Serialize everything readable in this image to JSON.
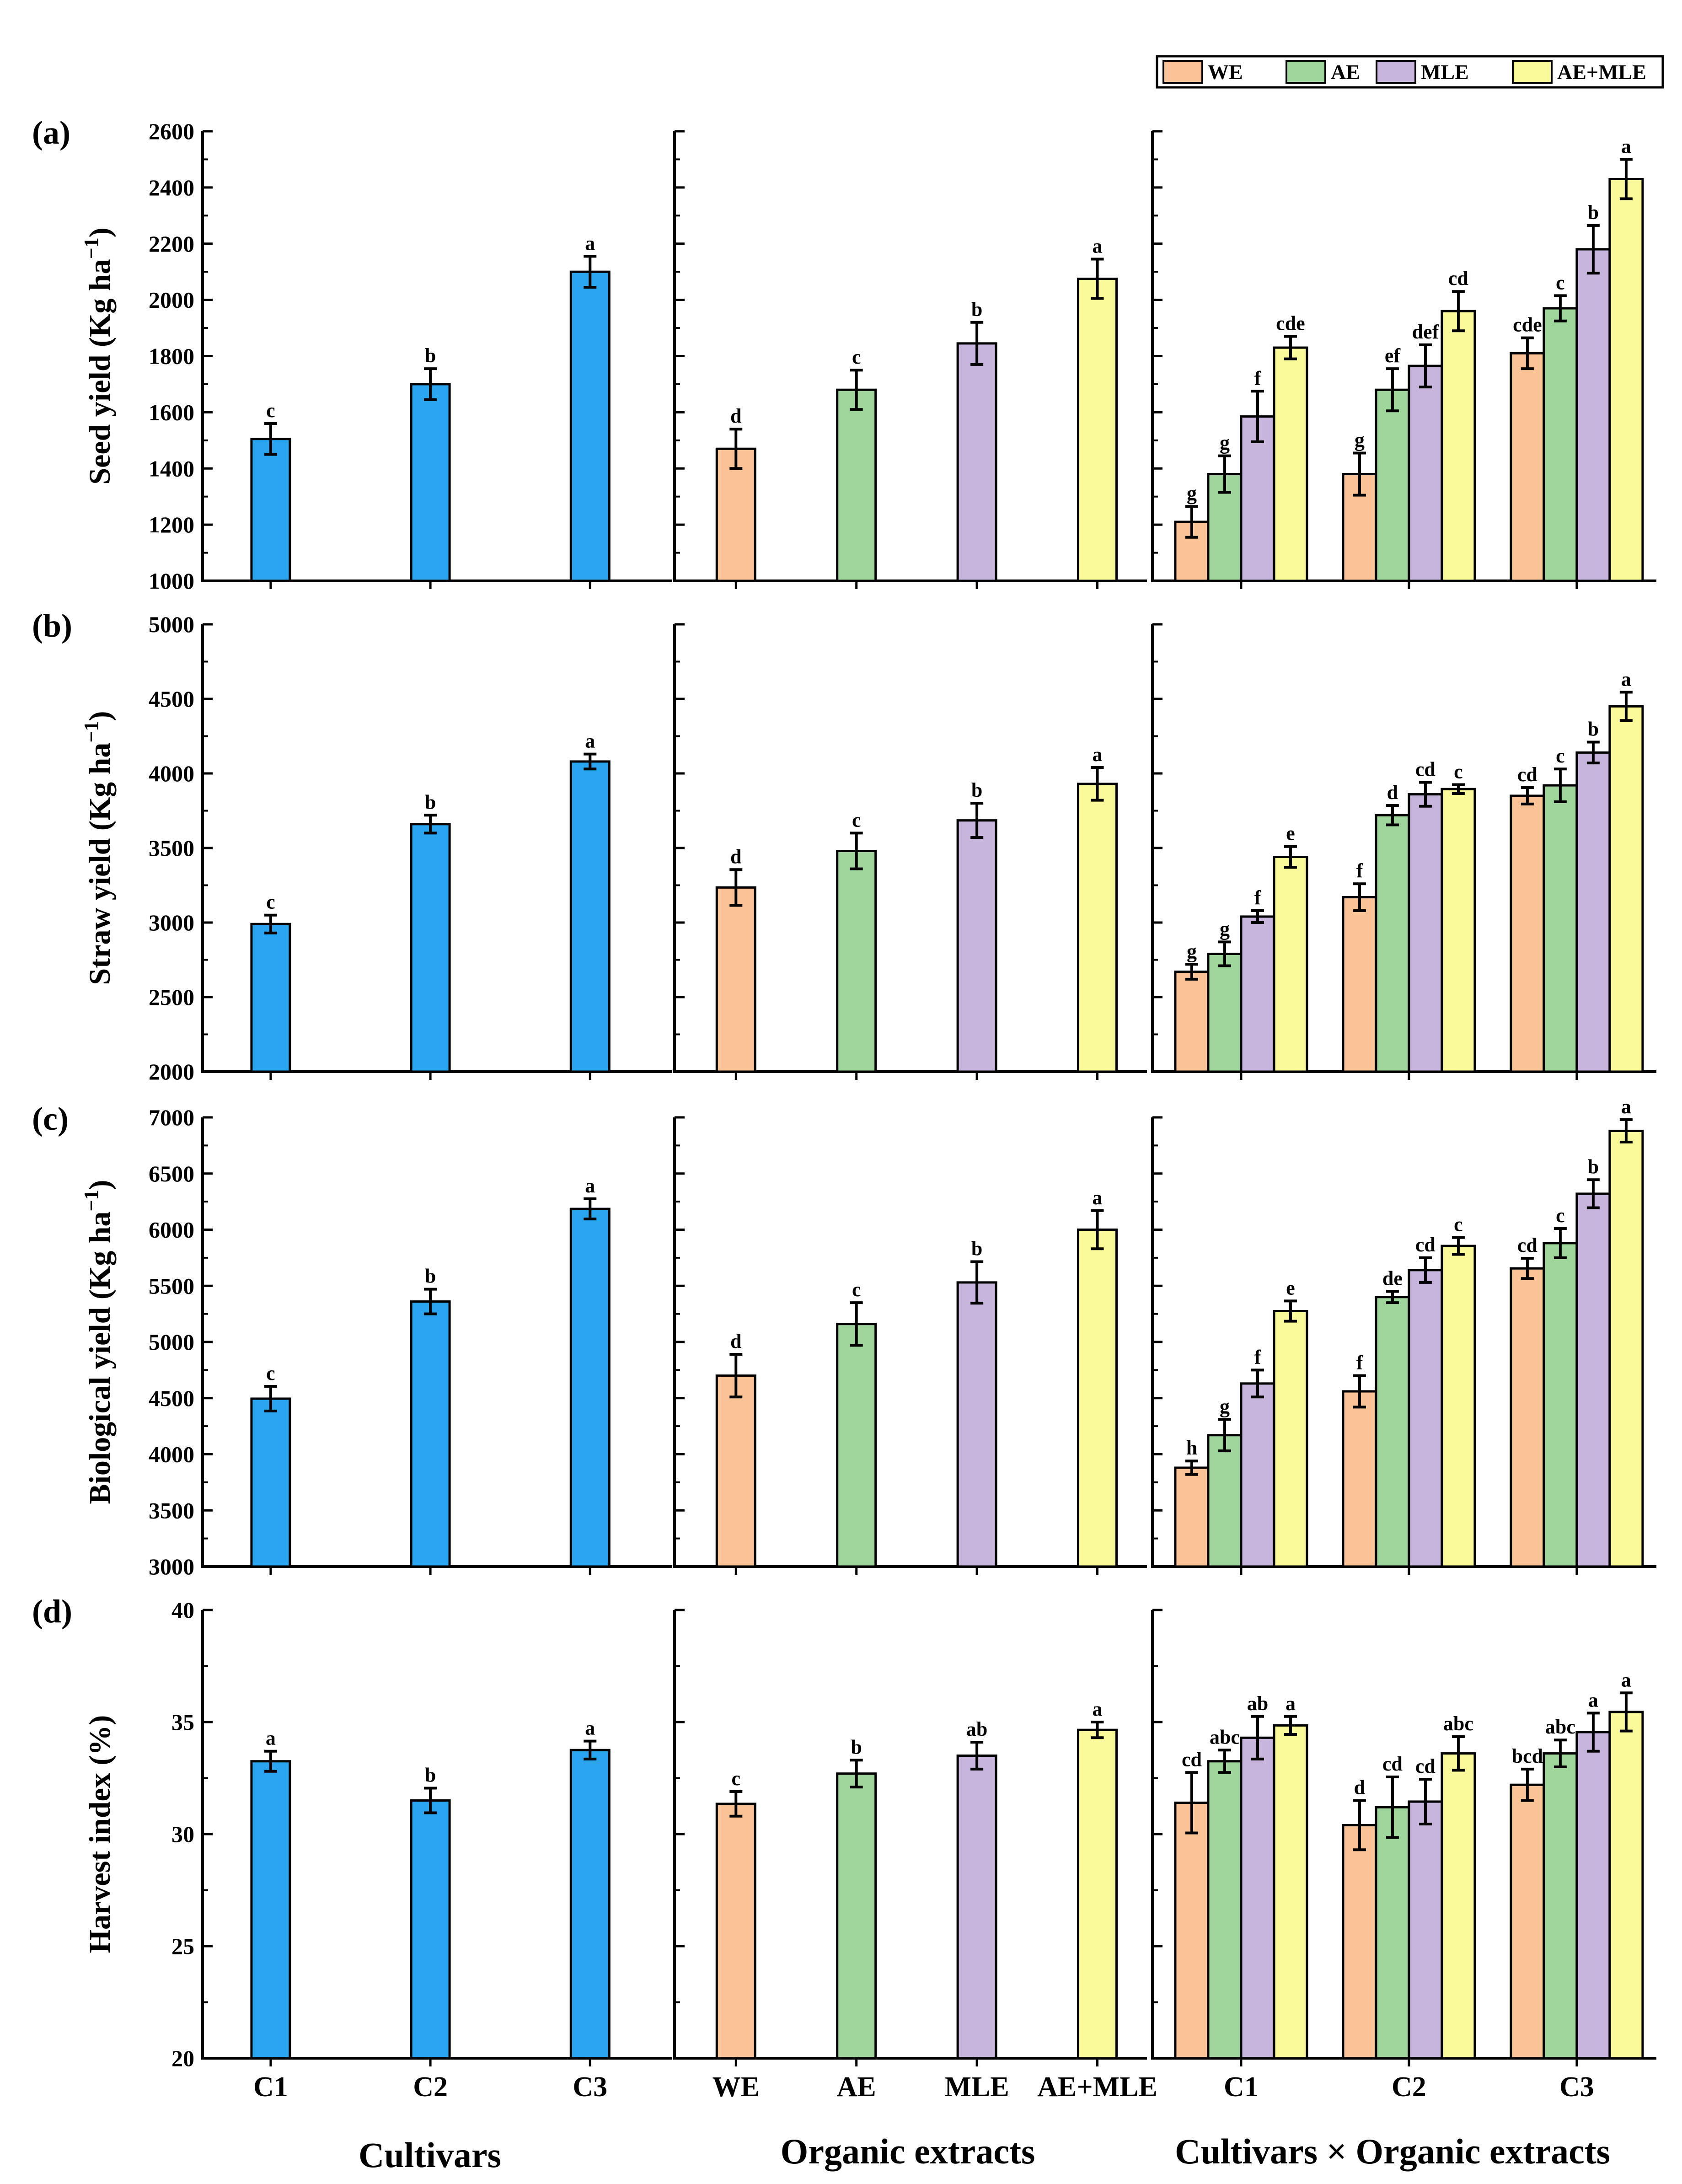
{
  "colors": {
    "cultivar": "#2aa5f0",
    "WE": "#f9c396",
    "AE": "#9fd69b",
    "MLE": "#c7b5de",
    "AE_MLE": "#fafa9a",
    "ink": "#000000"
  },
  "legend": {
    "items": [
      {
        "label": "WE",
        "color_key": "WE"
      },
      {
        "label": "AE",
        "color_key": "AE"
      },
      {
        "label": "MLE",
        "color_key": "MLE"
      },
      {
        "label": "AE+MLE",
        "color_key": "AE_MLE"
      }
    ]
  },
  "x_titles": {
    "cultivars": "Cultivars",
    "organic": "Organic extracts",
    "interaction": "Cultivars × Organic extracts"
  },
  "chart_data": {
    "type": "bar",
    "title": "",
    "group_categories": [
      "C1",
      "C2",
      "C3"
    ],
    "extract_categories": [
      "WE",
      "AE",
      "MLE",
      "AE+MLE"
    ],
    "legend_location": "top-right",
    "grid": false,
    "rows": [
      {
        "panel": "(a)",
        "ylabel": "Seed yield (Kg ha",
        "ylabel_sup": "−1",
        "ylabel_close": ")",
        "ylim": [
          1000,
          2600
        ],
        "yticks": [
          1000,
          1200,
          1400,
          1600,
          1800,
          2000,
          2200,
          2400,
          2600
        ],
        "cultivars": {
          "values": [
            1505,
            1700,
            2100
          ],
          "errors": [
            55,
            55,
            55
          ],
          "letters": [
            "c",
            "b",
            "a"
          ]
        },
        "organic": {
          "values": [
            1470,
            1680,
            1845,
            2075
          ],
          "errors": [
            70,
            70,
            75,
            70
          ],
          "letters": [
            "d",
            "c",
            "b",
            "a"
          ]
        },
        "interaction": {
          "series": [
            {
              "name": "WE",
              "values": [
                1210,
                1380,
                1810
              ],
              "errors": [
                55,
                75,
                55
              ],
              "letters": [
                "g",
                "g",
                "cde"
              ]
            },
            {
              "name": "AE",
              "values": [
                1380,
                1680,
                1970
              ],
              "errors": [
                65,
                75,
                45
              ],
              "letters": [
                "g",
                "ef",
                "c"
              ]
            },
            {
              "name": "MLE",
              "values": [
                1585,
                1765,
                2180
              ],
              "errors": [
                90,
                75,
                85
              ],
              "letters": [
                "f",
                "def",
                "b"
              ]
            },
            {
              "name": "AE+MLE",
              "values": [
                1830,
                1960,
                2430
              ],
              "errors": [
                40,
                70,
                70
              ],
              "letters": [
                "cde",
                "cd",
                "a"
              ]
            }
          ]
        }
      },
      {
        "panel": "(b)",
        "ylabel": "Straw yield (Kg ha",
        "ylabel_sup": "−1",
        "ylabel_close": ")",
        "ylim": [
          2000,
          5000
        ],
        "yticks": [
          2000,
          2500,
          3000,
          3500,
          4000,
          4500,
          5000
        ],
        "cultivars": {
          "values": [
            2990,
            3660,
            4080
          ],
          "errors": [
            60,
            60,
            50
          ],
          "letters": [
            "c",
            "b",
            "a"
          ]
        },
        "organic": {
          "values": [
            3235,
            3480,
            3685,
            3930
          ],
          "errors": [
            120,
            120,
            115,
            110
          ],
          "letters": [
            "d",
            "c",
            "b",
            "a"
          ]
        },
        "interaction": {
          "series": [
            {
              "name": "WE",
              "values": [
                2670,
                3170,
                3850
              ],
              "errors": [
                50,
                90,
                55
              ],
              "letters": [
                "g",
                "f",
                "cd"
              ]
            },
            {
              "name": "AE",
              "values": [
                2790,
                3720,
                3920
              ],
              "errors": [
                80,
                65,
                110
              ],
              "letters": [
                "g",
                "d",
                "c"
              ]
            },
            {
              "name": "MLE",
              "values": [
                3040,
                3860,
                4140
              ],
              "errors": [
                40,
                80,
                70
              ],
              "letters": [
                "f",
                "cd",
                "b"
              ]
            },
            {
              "name": "AE+MLE",
              "values": [
                3440,
                3895,
                4450
              ],
              "errors": [
                70,
                30,
                95
              ],
              "letters": [
                "e",
                "c",
                "a"
              ]
            }
          ]
        }
      },
      {
        "panel": "(c)",
        "ylabel": "Biological yield (Kg ha",
        "ylabel_sup": "−1",
        "ylabel_close": ")",
        "ylim": [
          3000,
          7000
        ],
        "yticks": [
          3000,
          3500,
          4000,
          4500,
          5000,
          5500,
          6000,
          6500,
          7000
        ],
        "cultivars": {
          "values": [
            4495,
            5360,
            6185
          ],
          "errors": [
            110,
            110,
            90
          ],
          "letters": [
            "c",
            "b",
            "a"
          ]
        },
        "organic": {
          "values": [
            4700,
            5160,
            5530,
            6000
          ],
          "errors": [
            190,
            190,
            185,
            170
          ],
          "letters": [
            "d",
            "c",
            "b",
            "a"
          ]
        },
        "interaction": {
          "series": [
            {
              "name": "WE",
              "values": [
                3880,
                4560,
                5655
              ],
              "errors": [
                60,
                140,
                90
              ],
              "letters": [
                "h",
                "f",
                "cd"
              ]
            },
            {
              "name": "AE",
              "values": [
                4170,
                5400,
                5880
              ],
              "errors": [
                140,
                50,
                130
              ],
              "letters": [
                "g",
                "de",
                "c"
              ]
            },
            {
              "name": "MLE",
              "values": [
                4630,
                5640,
                6320
              ],
              "errors": [
                120,
                110,
                125
              ],
              "letters": [
                "f",
                "cd",
                "b"
              ]
            },
            {
              "name": "AE+MLE",
              "values": [
                5275,
                5855,
                6880
              ],
              "errors": [
                90,
                75,
                100
              ],
              "letters": [
                "e",
                "c",
                "a"
              ]
            }
          ]
        }
      },
      {
        "panel": "(d)",
        "ylabel": "Harvest index (%)",
        "ylabel_sup": "",
        "ylabel_close": "",
        "ylim": [
          20,
          40
        ],
        "yticks": [
          20,
          25,
          30,
          35,
          40
        ],
        "cultivars": {
          "values": [
            33.25,
            31.5,
            33.75
          ],
          "errors": [
            0.45,
            0.55,
            0.4
          ],
          "letters": [
            "a",
            "b",
            "a"
          ]
        },
        "organic": {
          "values": [
            31.35,
            32.7,
            33.5,
            34.65
          ],
          "errors": [
            0.55,
            0.6,
            0.6,
            0.35
          ],
          "letters": [
            "c",
            "b",
            "ab",
            "a"
          ]
        },
        "interaction": {
          "series": [
            {
              "name": "WE",
              "values": [
                31.4,
                30.4,
                32.2
              ],
              "errors": [
                1.35,
                1.1,
                0.7
              ],
              "letters": [
                "cd",
                "d",
                "bcd"
              ]
            },
            {
              "name": "AE",
              "values": [
                33.25,
                31.2,
                33.6
              ],
              "errors": [
                0.5,
                1.35,
                0.6
              ],
              "letters": [
                "abc",
                "cd",
                "abc"
              ]
            },
            {
              "name": "MLE",
              "values": [
                34.3,
                31.45,
                34.55
              ],
              "errors": [
                0.95,
                1.0,
                0.85
              ],
              "letters": [
                "ab",
                "cd",
                "a"
              ]
            },
            {
              "name": "AE+MLE",
              "values": [
                34.85,
                33.6,
                35.45
              ],
              "errors": [
                0.4,
                0.75,
                0.85
              ],
              "letters": [
                "a",
                "abc",
                "a"
              ]
            }
          ]
        }
      }
    ]
  }
}
